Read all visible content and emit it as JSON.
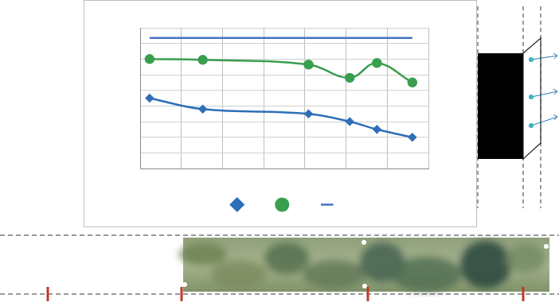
{
  "chart_data": {
    "type": "line",
    "x": [
      0.23,
      1.52,
      4.09,
      5.09,
      5.75,
      6.61
    ],
    "series": [
      {
        "color": "#2e6fb7",
        "marker": "diamond",
        "values": [
          4.5,
          3.8,
          3.5,
          3.0,
          2.5,
          2.0
        ]
      },
      {
        "color": "#3a9e4f",
        "marker": "circle",
        "values": [
          7.0,
          6.95,
          6.65,
          5.8,
          6.75,
          5.5
        ]
      },
      {
        "color": "#4472c4",
        "marker": "none",
        "values": [
          8.35,
          8.35,
          8.35,
          8.35,
          8.35,
          8.35
        ]
      }
    ],
    "xlim": [
      0,
      7
    ],
    "xticks": [
      0,
      1,
      2,
      3,
      4,
      5,
      6,
      7
    ],
    "ylim": [
      0,
      9
    ],
    "yticks": [
      0,
      1,
      2,
      3,
      4,
      5,
      6,
      7,
      8,
      9
    ],
    "grid": true,
    "legend": "bottom",
    "tick_labels": false
  }
}
